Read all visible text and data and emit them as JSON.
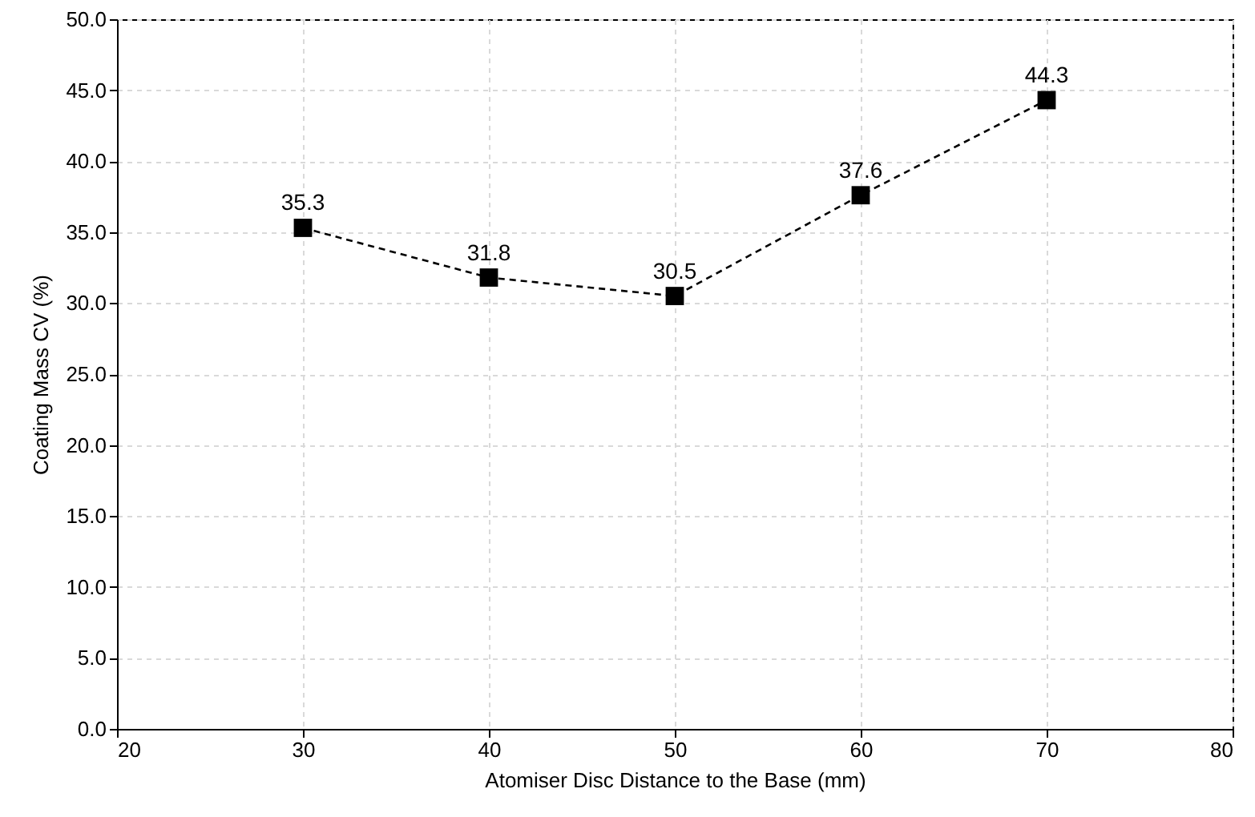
{
  "chart_data": {
    "type": "line",
    "xlabel": "Atomiser Disc Distance to the Base (mm)",
    "ylabel": "Coating Mass CV (%)",
    "x": [
      30,
      40,
      50,
      60,
      70
    ],
    "series": [
      {
        "color": "#000000",
        "values": [
          35.3,
          31.8,
          30.5,
          37.6,
          44.3
        ]
      }
    ],
    "xlim": [
      20,
      80
    ],
    "xticks": [
      20,
      30,
      40,
      50,
      60,
      70,
      80
    ],
    "ylim": [
      0,
      50
    ],
    "yticks": [
      {
        "value": 0,
        "label": "0.0"
      },
      {
        "value": 5,
        "label": "5.0"
      },
      {
        "value": 10,
        "label": "10.0"
      },
      {
        "value": 15,
        "label": "15.0"
      },
      {
        "value": 20,
        "label": "20.0"
      },
      {
        "value": 25,
        "label": "25.0"
      },
      {
        "value": 30,
        "label": "30.0"
      },
      {
        "value": 35,
        "label": "35.0"
      },
      {
        "value": 40,
        "label": "40.0"
      },
      {
        "value": 45,
        "label": "45.0"
      },
      {
        "value": 50,
        "label": "50.0"
      }
    ],
    "grid": true,
    "marker": "square",
    "line_style": "dashed",
    "data_labels": true
  }
}
